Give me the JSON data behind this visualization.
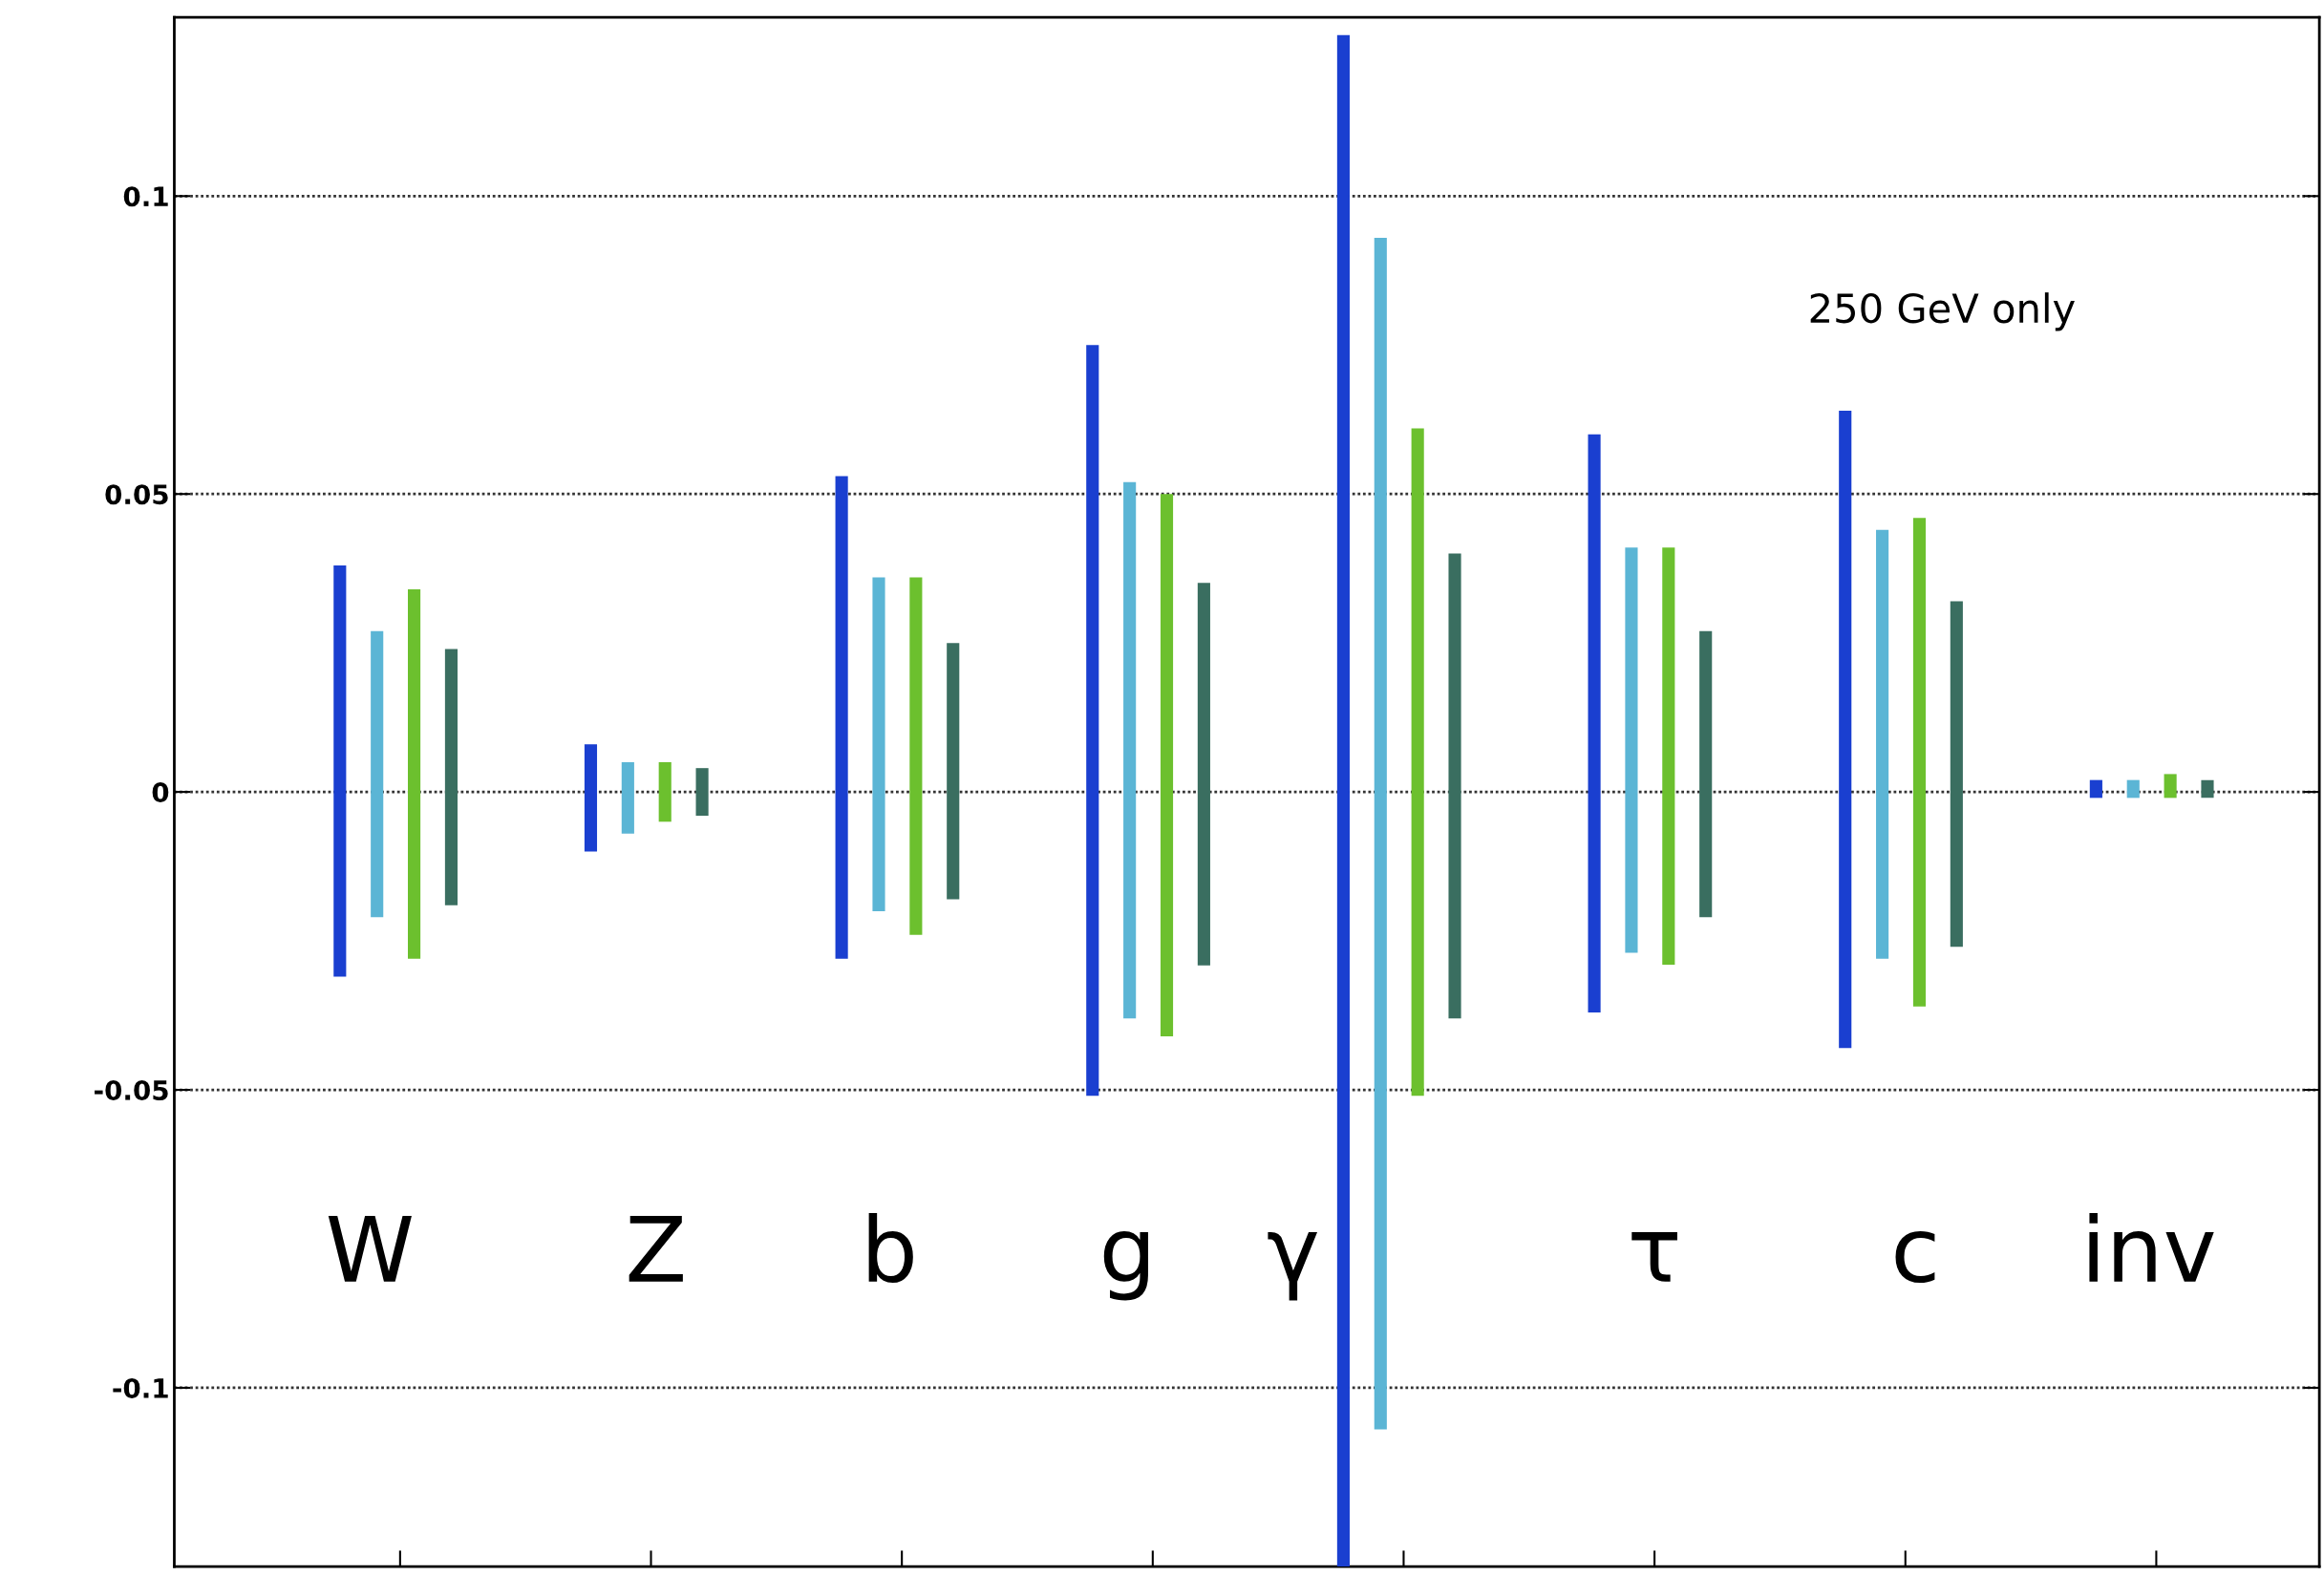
{
  "chart_data": {
    "type": "bar",
    "categories": [
      "W",
      "Z",
      "b",
      "g",
      "γ",
      "τ",
      "c",
      "inv"
    ],
    "series": [
      {
        "color": "#1a3fd0",
        "base": [
          -0.031,
          -0.01,
          -0.028,
          -0.051,
          -0.13,
          -0.037,
          -0.043,
          -0.001
        ],
        "values": [
          0.069,
          0.018,
          0.081,
          0.126,
          0.257,
          0.097,
          0.107,
          0.003
        ]
      },
      {
        "color": "#5bb5d5",
        "base": [
          -0.021,
          -0.007,
          -0.02,
          -0.038,
          -0.107,
          -0.027,
          -0.028,
          -0.001
        ],
        "values": [
          0.048,
          0.012,
          0.056,
          0.09,
          0.2,
          0.068,
          0.072,
          0.003
        ]
      },
      {
        "color": "#6cc02e",
        "base": [
          -0.028,
          -0.005,
          -0.024,
          -0.041,
          -0.051,
          -0.029,
          -0.036,
          -0.001
        ],
        "values": [
          0.062,
          0.01,
          0.06,
          0.091,
          0.112,
          0.07,
          0.082,
          0.004
        ]
      },
      {
        "color": "#3a6e60",
        "base": [
          -0.019,
          -0.004,
          -0.018,
          -0.0291,
          -0.038,
          -0.021,
          -0.026,
          -0.001
        ],
        "values": [
          0.043,
          0.008,
          0.043,
          0.0642,
          0.078,
          0.048,
          0.058,
          0.003
        ]
      }
    ],
    "ylim": [
      -0.13,
      0.13
    ],
    "yticks": [
      {
        "value": -0.1,
        "label": "-0.1"
      },
      {
        "value": -0.05,
        "label": "-0.05"
      },
      0,
      0.05,
      0.1
    ],
    "grid": "y",
    "legend": false,
    "annotations": [
      "250 GeV only"
    ]
  }
}
